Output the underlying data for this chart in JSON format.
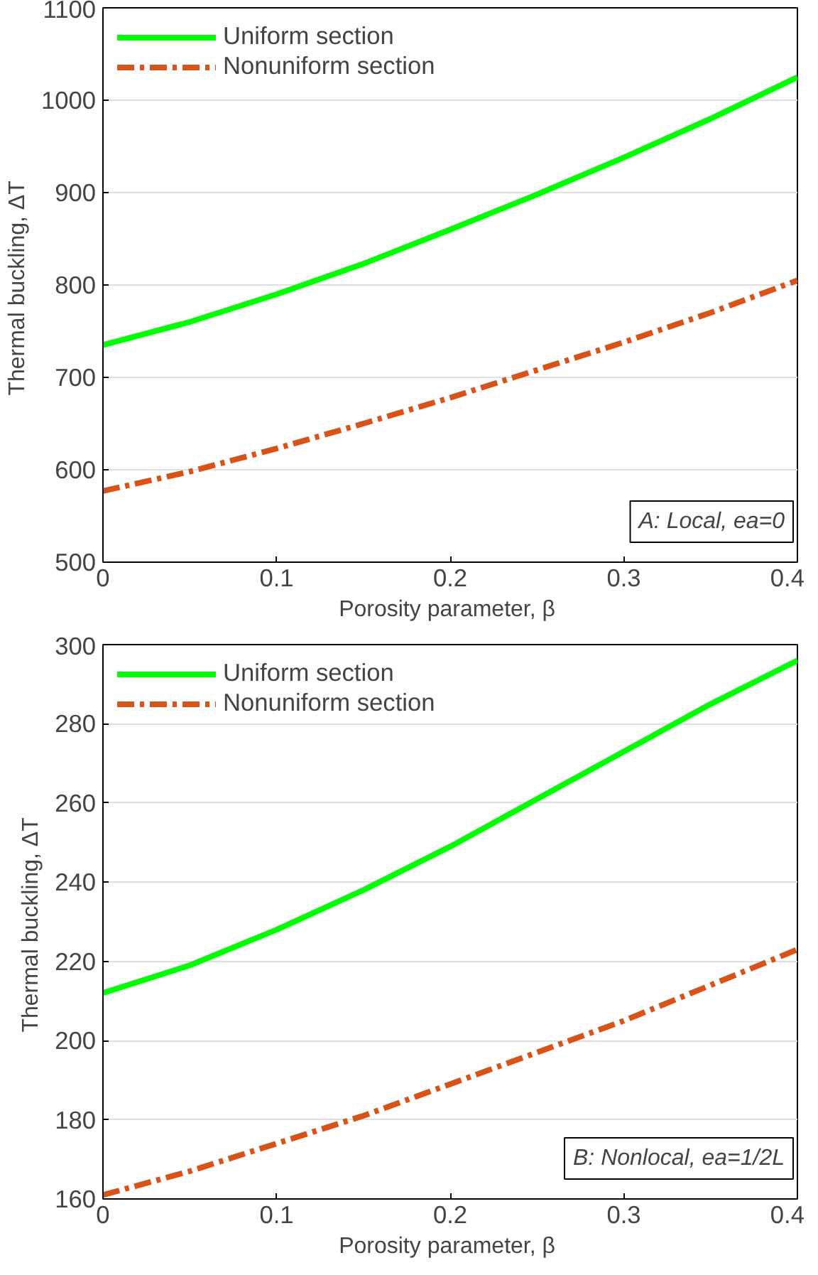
{
  "chart_data": [
    {
      "type": "line",
      "xlabel": "Porosity parameter,  β",
      "ylabel": "Thermal buckling,  ΔT",
      "x": [
        0,
        0.05,
        0.1,
        0.15,
        0.2,
        0.25,
        0.3,
        0.35,
        0.4
      ],
      "series": [
        {
          "name": "Uniform section",
          "color": "#00ff00",
          "line_style": "solid",
          "values": [
            735,
            760,
            790,
            823,
            860,
            898,
            938,
            980,
            1025
          ]
        },
        {
          "name": "Nonuniform section",
          "color": "#d95319",
          "line_style": "dashed",
          "values": [
            577,
            598,
            623,
            650,
            678,
            708,
            738,
            770,
            805
          ]
        }
      ],
      "xlim": [
        0,
        0.4
      ],
      "xticks": [
        0,
        0.1,
        0.2,
        0.3,
        0.4
      ],
      "ylim": [
        500,
        1100
      ],
      "yticks": [
        500,
        600,
        700,
        800,
        900,
        1000,
        1100
      ],
      "grid": "y",
      "legend": "top left",
      "annotations": [
        "A: Local, ea=0"
      ]
    },
    {
      "type": "line",
      "xlabel": "Porosity parameter,  β",
      "ylabel": "Thermal buckling,  ΔT",
      "x": [
        0,
        0.05,
        0.1,
        0.15,
        0.2,
        0.25,
        0.3,
        0.35,
        0.4
      ],
      "series": [
        {
          "name": "Uniform section",
          "color": "#00ff00",
          "line_style": "solid",
          "values": [
            212,
            219,
            228,
            238,
            249,
            261,
            273,
            285,
            296
          ]
        },
        {
          "name": "Nonuniform section",
          "color": "#d95319",
          "line_style": "dashed",
          "values": [
            161,
            167,
            174,
            181,
            189,
            197,
            205,
            214,
            223
          ]
        }
      ],
      "xlim": [
        0,
        0.4
      ],
      "xticks": [
        0,
        0.1,
        0.2,
        0.3,
        0.4
      ],
      "ylim": [
        160,
        300
      ],
      "yticks": [
        160,
        180,
        200,
        220,
        240,
        260,
        280,
        300
      ],
      "grid": "y",
      "legend": "top left",
      "annotations": [
        "B: Nonlocal, ea=1/2L"
      ]
    }
  ]
}
